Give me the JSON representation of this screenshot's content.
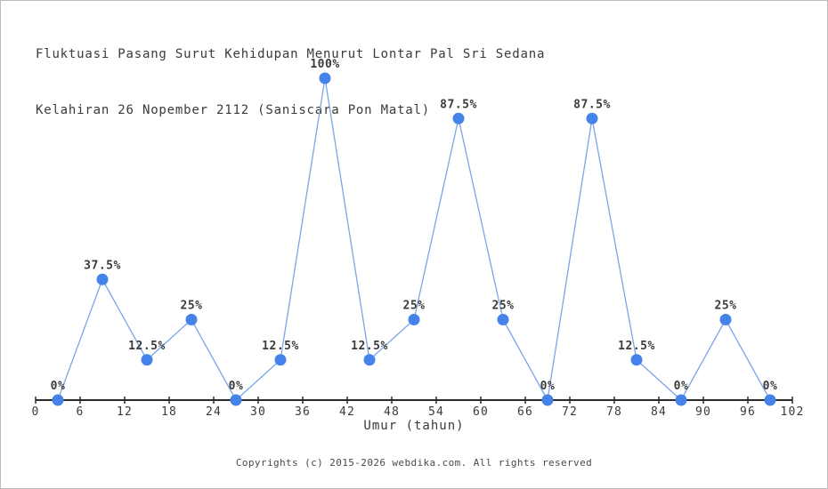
{
  "page": {
    "background": "#ffffff",
    "border_color": "#bdbdbd"
  },
  "chart_data": {
    "type": "line",
    "title_lines": [
      "Fluktuasi Pasang Surut Kehidupan Menurut Lontar Pal Sri Sedana",
      "Kelahiran 26 Nopember 2112 (Saniscara Pon Matal)"
    ],
    "xlabel": "Umur (tahun)",
    "ylabel": "",
    "x": [
      3,
      9,
      15,
      21,
      27,
      33,
      39,
      45,
      51,
      57,
      63,
      69,
      75,
      81,
      87,
      93,
      99
    ],
    "values": [
      0,
      37.5,
      12.5,
      25,
      0,
      12.5,
      100,
      12.5,
      25,
      87.5,
      25,
      0,
      87.5,
      12.5,
      0,
      25,
      0
    ],
    "labels": [
      "0%",
      "37.5%",
      "12.5%",
      "25%",
      "0%",
      "12.5%",
      "100%",
      "12.5%",
      "25%",
      "87.5%",
      "25%",
      "0%",
      "87.5%",
      "12.5%",
      "0%",
      "25%",
      "0%"
    ],
    "x_ticks": [
      0,
      6,
      12,
      18,
      24,
      30,
      36,
      42,
      48,
      54,
      60,
      66,
      72,
      78,
      84,
      90,
      96,
      102
    ],
    "xlim": [
      0,
      102
    ],
    "ylim": [
      0,
      100
    ],
    "grid": false,
    "legend": "none",
    "colors": {
      "line": "#7aa6e8",
      "marker": "#4583ea",
      "axis": "#2a2a2a",
      "text": "#3a3a3a"
    }
  },
  "footer": {
    "copyright": "Copyrights (c) 2015-2026 webdika.com. All rights reserved"
  }
}
